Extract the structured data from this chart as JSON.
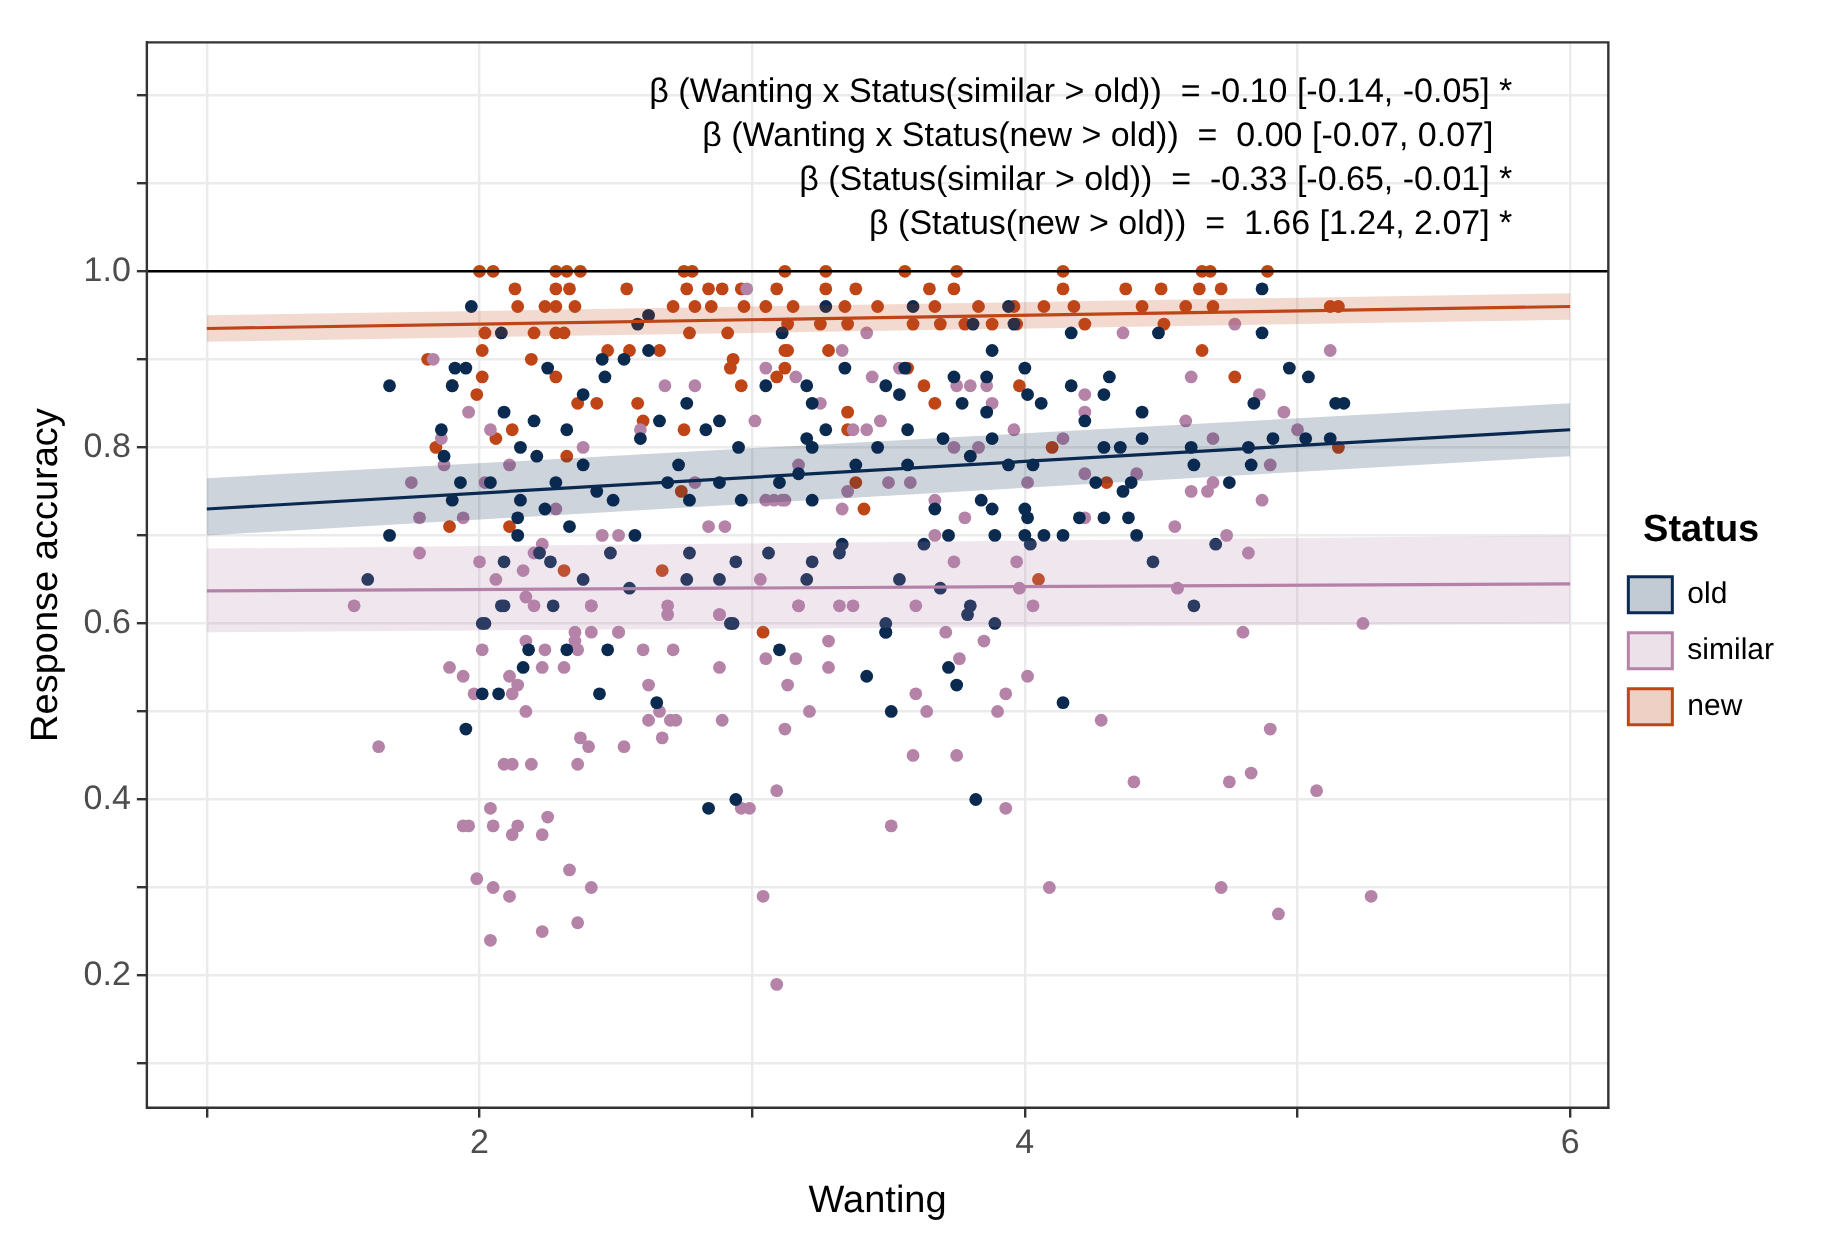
{
  "chart_data": {
    "type": "scatter",
    "xlabel": "Wanting",
    "ylabel": "Response accuracy",
    "legend_title": "Status",
    "legend": "right",
    "grid": true,
    "marker": "circle",
    "xlim": [
      0.78,
      6.14
    ],
    "ylim": [
      0.05,
      1.26
    ],
    "xticks": [
      {
        "value": 1,
        "label": null
      },
      2,
      {
        "value": 3,
        "label": null
      },
      4,
      {
        "value": 5,
        "label": null
      },
      6
    ],
    "yticks": [
      {
        "value": 0.1,
        "label": null
      },
      0.2,
      {
        "value": 0.3,
        "label": null
      },
      0.4,
      {
        "value": 0.5,
        "label": null
      },
      0.6,
      {
        "value": 0.7,
        "label": null
      },
      0.8,
      {
        "value": 0.9,
        "label": null
      },
      {
        "value": 1,
        "label": "1.0"
      },
      {
        "value": 1.1,
        "label": null
      },
      {
        "value": 1.2,
        "label": null
      }
    ],
    "annotations": [
      "β (Wanting x Status(similar > old))  = -0.10 [-0.14, -0.05] *",
      "β (Wanting x Status(new > old))  =  0.00 [-0.07, 0.07]  ",
      "β (Status(similar > old))  =  -0.33 [-0.65, -0.01] *",
      "β (Status(new > old))  =  1.66 [1.24, 2.07] *"
    ],
    "ref_lines": [
      {
        "axis": "y",
        "value": 1,
        "color": "#000000"
      }
    ],
    "series": [
      {
        "type": "line",
        "marker": "none",
        "color": "#b583a8",
        "x": [
          1,
          6
        ],
        "values": [
          0.637,
          0.645
        ],
        "lower": [
          0.59,
          0.6
        ],
        "upper": [
          0.685,
          0.7
        ]
      },
      {
        "type": "line",
        "marker": "none",
        "color": "#0b2a50",
        "x": [
          1,
          6
        ],
        "values": [
          0.73,
          0.82
        ],
        "lower": [
          0.7,
          0.79
        ],
        "upper": [
          0.765,
          0.85
        ]
      },
      {
        "type": "line",
        "marker": "none",
        "color": "#bf4517",
        "x": [
          1,
          6
        ],
        "values": [
          0.935,
          0.96
        ],
        "lower": [
          0.92,
          0.945
        ],
        "upper": [
          0.95,
          0.975
        ]
      },
      {
        "name": "old",
        "color": "#0b2a50",
        "x": [
          1.97,
          1.67,
          2.08,
          1.91,
          1.95,
          1.9,
          2.25,
          2.09,
          2.2,
          2.32,
          2.38,
          1.86,
          1.87,
          1.93,
          1.9,
          1.67,
          1.59,
          2.04,
          2.15,
          2.21,
          2.28,
          2.38,
          2.15,
          2.24,
          2.14,
          2.33,
          2.43,
          2.49,
          2.09,
          2.14,
          2.26,
          2.22,
          2.38,
          2.27,
          2.09,
          2.48,
          2.57,
          2.59,
          2.66,
          2.45,
          2.46,
          2.53,
          2.62,
          2.58,
          2.62,
          2.76,
          2.83,
          2.88,
          2.95,
          2.73,
          2.69,
          2.88,
          2.96,
          2.77,
          2.77,
          2.94,
          2.76,
          2.88,
          3.06,
          2.93,
          3.11,
          3.05,
          3.1,
          3.17,
          2.55,
          2.02,
          3.27,
          3.59,
          3.81,
          3.94,
          3.96,
          4.17,
          4.49,
          4.87,
          4.87,
          3.88,
          3.34,
          3.2,
          3.49,
          3.56,
          3.74,
          3.86,
          4.0,
          4.17,
          4.31,
          4.97,
          5.04,
          3.22,
          3.54,
          3.77,
          3.86,
          4.01,
          4.06,
          4.22,
          4.29,
          4.43,
          4.84,
          5.14,
          5.17,
          3.27,
          3.57,
          3.2,
          3.22,
          3.46,
          3.7,
          3.88,
          4.29,
          4.35,
          4.43,
          4.61,
          4.82,
          4.91,
          5.03,
          5.12,
          4.62,
          4.83,
          3.8,
          3.57,
          3.38,
          3.94,
          4.03,
          4.26,
          4.39,
          4.36,
          4.75,
          3.22,
          3.67,
          3.84,
          3.88,
          4.0,
          4.01,
          4.29,
          4.38,
          4.07,
          4.14,
          4.2,
          3.89,
          3.72,
          3.63,
          4.0,
          4.02,
          4.41,
          4.7,
          3.33,
          3.32,
          3.22,
          3.2,
          3.54,
          4.47,
          3.69,
          4.62,
          3.8,
          3.49,
          3.89,
          2.08,
          2.01,
          2.18,
          2.32,
          2.47,
          2.16,
          2.01,
          2.07,
          2.44,
          2.65,
          1.95,
          2.92,
          3.1,
          2.94,
          2.84,
          3.49,
          3.49,
          3.79,
          3.42,
          3.72,
          3.75,
          3.51,
          4.14,
          3.82
        ],
        "values": [
          0.96,
          0.87,
          0.93,
          0.89,
          0.89,
          0.87,
          0.89,
          0.84,
          0.83,
          0.82,
          0.86,
          0.82,
          0.79,
          0.76,
          0.74,
          0.7,
          0.65,
          0.76,
          0.8,
          0.79,
          0.76,
          0.78,
          0.74,
          0.73,
          0.72,
          0.71,
          0.75,
          0.74,
          0.67,
          0.7,
          0.67,
          0.68,
          0.65,
          0.62,
          0.62,
          0.68,
          0.7,
          0.81,
          0.83,
          0.9,
          0.88,
          0.9,
          0.91,
          0.94,
          0.95,
          0.85,
          0.82,
          0.83,
          0.8,
          0.78,
          0.76,
          0.76,
          0.74,
          0.74,
          0.68,
          0.67,
          0.65,
          0.65,
          0.68,
          0.6,
          0.93,
          0.87,
          0.76,
          0.77,
          0.64,
          0.6,
          0.96,
          0.96,
          0.94,
          0.96,
          0.94,
          0.93,
          0.93,
          0.98,
          0.93,
          0.91,
          0.89,
          0.87,
          0.87,
          0.89,
          0.88,
          0.88,
          0.89,
          0.87,
          0.88,
          0.89,
          0.88,
          0.85,
          0.86,
          0.85,
          0.84,
          0.86,
          0.85,
          0.83,
          0.86,
          0.84,
          0.85,
          0.85,
          0.85,
          0.82,
          0.82,
          0.81,
          0.8,
          0.8,
          0.81,
          0.81,
          0.8,
          0.8,
          0.81,
          0.8,
          0.8,
          0.81,
          0.81,
          0.81,
          0.78,
          0.78,
          0.79,
          0.78,
          0.78,
          0.78,
          0.78,
          0.76,
          0.76,
          0.75,
          0.76,
          0.74,
          0.73,
          0.74,
          0.73,
          0.73,
          0.72,
          0.72,
          0.72,
          0.7,
          0.7,
          0.72,
          0.7,
          0.7,
          0.69,
          0.7,
          0.69,
          0.7,
          0.69,
          0.69,
          0.68,
          0.67,
          0.65,
          0.65,
          0.67,
          0.64,
          0.62,
          0.62,
          0.6,
          0.6,
          0.62,
          0.6,
          0.57,
          0.57,
          0.57,
          0.55,
          0.52,
          0.52,
          0.52,
          0.51,
          0.48,
          0.6,
          0.57,
          0.4,
          0.39,
          0.59,
          0.59,
          0.61,
          0.54,
          0.55,
          0.53,
          0.5,
          0.51,
          0.4
        ]
      },
      {
        "name": "similar",
        "color": "#b583a8",
        "x": [
          1.54,
          1.89,
          1.94,
          1.98,
          2.12,
          2.11,
          2.14,
          2.01,
          2.17,
          2.24,
          2.23,
          2.31,
          2.36,
          2.35,
          2.41,
          2.51,
          2.41,
          2.2,
          2.69,
          2.71,
          2.6,
          2.62,
          2.66,
          2.62,
          2.7,
          2.72,
          2.67,
          2.89,
          2.88,
          2.88,
          2.17,
          1.63,
          2.37,
          2.4,
          2.53,
          2.36,
          2.19,
          2.12,
          2.09,
          2.04,
          1.94,
          1.96,
          2.05,
          2.14,
          2.12,
          2.25,
          2.23,
          1.99,
          2.05,
          2.11,
          2.33,
          2.41,
          2.23,
          2.36,
          2.04,
          3.04,
          3.09,
          3.09,
          2.96,
          2.99,
          3.12,
          3.05,
          3.13,
          3.16,
          3.28,
          3.28,
          3.21,
          3.6,
          3.64,
          3.59,
          3.75,
          3.71,
          3.85,
          3.76,
          3.93,
          3.9,
          3.93,
          3.51,
          4.01,
          4.28,
          4.4,
          4.09,
          4.72,
          4.93,
          4.75,
          4.83,
          4.9,
          5.07,
          4.8,
          5.24,
          5.27,
          3.42,
          3.54,
          3.33,
          3.16,
          3.44,
          3.75,
          3.8,
          3.86,
          4.22,
          4.22,
          4.36,
          4.61,
          4.77,
          5.12,
          4.86,
          4.95,
          5.0,
          4.59,
          4.69,
          4.9,
          4.69,
          4.61,
          4.67,
          4.87,
          4.41,
          3.67,
          3.78,
          4.22,
          4.55,
          4.74,
          4.82,
          3.42,
          3.47,
          3.37,
          3.25,
          3.35,
          3.58,
          3.5,
          4.01,
          3.96,
          3.88,
          3.74,
          3.83,
          4.14,
          4.22,
          3.33,
          3.67,
          3.74,
          3.32,
          3.37,
          3.6,
          3.97,
          3.98,
          4.03,
          4.56,
          3.17,
          3.11,
          1.83,
          1.96,
          2.04,
          1.86,
          1.87,
          1.75,
          1.78,
          1.78,
          1.94,
          2.11,
          2.02,
          2.28,
          2.38,
          2.45,
          2.51,
          2.2,
          2.23,
          2.0,
          2.16,
          2.06,
          2.17,
          2.41,
          2.51,
          2.59,
          2.68,
          2.79,
          3.01,
          3.05,
          2.98,
          2.79,
          2.84,
          2.9,
          3.05,
          3.08,
          3.12,
          2.88,
          3.03,
          3.17,
          2.35,
          2.69,
          3.17
        ],
        "values": [
          0.62,
          0.55,
          0.54,
          0.52,
          0.52,
          0.54,
          0.53,
          0.57,
          0.58,
          0.57,
          0.55,
          0.55,
          0.57,
          0.58,
          0.59,
          0.59,
          0.62,
          0.62,
          0.61,
          0.57,
          0.57,
          0.53,
          0.5,
          0.49,
          0.49,
          0.49,
          0.47,
          0.49,
          0.55,
          0.61,
          0.5,
          0.46,
          0.47,
          0.46,
          0.46,
          0.44,
          0.44,
          0.44,
          0.44,
          0.39,
          0.37,
          0.37,
          0.37,
          0.37,
          0.36,
          0.38,
          0.36,
          0.31,
          0.3,
          0.29,
          0.32,
          0.3,
          0.25,
          0.26,
          0.24,
          0.29,
          0.19,
          0.41,
          0.39,
          0.39,
          0.48,
          0.56,
          0.53,
          0.56,
          0.58,
          0.55,
          0.5,
          0.52,
          0.5,
          0.45,
          0.45,
          0.59,
          0.58,
          0.56,
          0.52,
          0.5,
          0.39,
          0.37,
          0.54,
          0.49,
          0.42,
          0.3,
          0.3,
          0.27,
          0.42,
          0.43,
          0.48,
          0.41,
          0.59,
          0.6,
          0.29,
          0.93,
          0.89,
          0.91,
          0.88,
          0.88,
          0.87,
          0.87,
          0.87,
          0.86,
          0.84,
          0.93,
          0.88,
          0.94,
          0.91,
          0.86,
          0.84,
          0.82,
          0.83,
          0.81,
          0.78,
          0.76,
          0.75,
          0.75,
          0.74,
          0.77,
          0.74,
          0.72,
          0.72,
          0.71,
          0.7,
          0.68,
          0.82,
          0.83,
          0.82,
          0.85,
          0.75,
          0.76,
          0.76,
          0.76,
          0.82,
          0.85,
          0.8,
          0.8,
          0.81,
          0.77,
          0.73,
          0.7,
          0.67,
          0.62,
          0.62,
          0.62,
          0.67,
          0.64,
          0.62,
          0.64,
          0.62,
          0.74,
          0.9,
          0.84,
          0.82,
          0.81,
          0.78,
          0.76,
          0.72,
          0.68,
          0.72,
          0.78,
          0.76,
          0.73,
          0.8,
          0.7,
          0.7,
          0.68,
          0.69,
          0.67,
          0.66,
          0.65,
          0.63,
          0.62,
          0.59,
          0.82,
          0.87,
          0.87,
          0.83,
          0.89,
          0.98,
          0.76,
          0.71,
          0.71,
          0.74,
          0.74,
          0.74,
          0.61,
          0.65,
          0.62,
          0.59,
          0.62,
          0.78
        ]
      },
      {
        "name": "new",
        "color": "#bf4517",
        "x": [
          2.0,
          2.05,
          2.28,
          2.32,
          2.37,
          2.75,
          2.78,
          3.12,
          3.27,
          3.56,
          3.75,
          4.14,
          4.65,
          4.68,
          4.89,
          2.13,
          2.28,
          2.33,
          2.54,
          2.76,
          2.84,
          2.89,
          2.96,
          3.09,
          3.27,
          3.38,
          3.65,
          3.74,
          4.14,
          4.37,
          4.5,
          4.64,
          4.72,
          2.14,
          2.24,
          2.28,
          2.35,
          2.71,
          2.79,
          2.85,
          2.97,
          3.05,
          3.15,
          3.34,
          3.46,
          3.67,
          3.83,
          3.96,
          4.07,
          4.18,
          4.43,
          4.59,
          4.69,
          5.12,
          5.15,
          3.13,
          3.25,
          3.35,
          3.59,
          3.69,
          3.78,
          3.88,
          3.97,
          4.22,
          4.51,
          2.02,
          2.2,
          2.28,
          2.31,
          1.81,
          2.01,
          2.19,
          2.28,
          2.01,
          1.9,
          1.99,
          2.36,
          2.43,
          2.58,
          2.47,
          2.55,
          2.66,
          2.77,
          2.91,
          2.93,
          2.92,
          2.96,
          3.09,
          3.12,
          2.12,
          2.06,
          1.84,
          2.6,
          2.75,
          2.32,
          1.89,
          2.11,
          2.31,
          2.67,
          3.04,
          2.74,
          3.28,
          3.13,
          4.65,
          4.77,
          3.57,
          3.63,
          3.98,
          3.67,
          3.35,
          3.35,
          4.1,
          4.3,
          3.41,
          3.38,
          5.15,
          4.05,
          3.12
        ],
        "values": [
          1,
          1,
          1,
          1,
          1,
          1,
          1,
          1,
          1,
          1,
          1,
          1,
          1,
          1,
          1,
          0.98,
          0.98,
          0.98,
          0.98,
          0.98,
          0.98,
          0.98,
          0.98,
          0.98,
          0.98,
          0.98,
          0.98,
          0.98,
          0.98,
          0.98,
          0.98,
          0.98,
          0.98,
          0.96,
          0.96,
          0.96,
          0.96,
          0.96,
          0.96,
          0.96,
          0.96,
          0.96,
          0.96,
          0.96,
          0.96,
          0.96,
          0.96,
          0.96,
          0.96,
          0.96,
          0.96,
          0.96,
          0.96,
          0.96,
          0.96,
          0.94,
          0.94,
          0.94,
          0.94,
          0.94,
          0.94,
          0.94,
          0.94,
          0.94,
          0.94,
          0.93,
          0.93,
          0.93,
          0.93,
          0.9,
          0.91,
          0.9,
          0.88,
          0.88,
          0.87,
          0.86,
          0.85,
          0.85,
          0.85,
          0.91,
          0.91,
          0.91,
          0.93,
          0.93,
          0.9,
          0.89,
          0.87,
          0.88,
          0.91,
          0.82,
          0.81,
          0.8,
          0.83,
          0.82,
          0.79,
          0.71,
          0.71,
          0.66,
          0.66,
          0.59,
          0.75,
          0.91,
          0.91,
          0.91,
          0.88,
          0.89,
          0.87,
          0.87,
          0.85,
          0.84,
          0.82,
          0.8,
          0.76,
          0.73,
          0.76,
          0.8,
          0.65,
          0.89
        ]
      }
    ]
  }
}
